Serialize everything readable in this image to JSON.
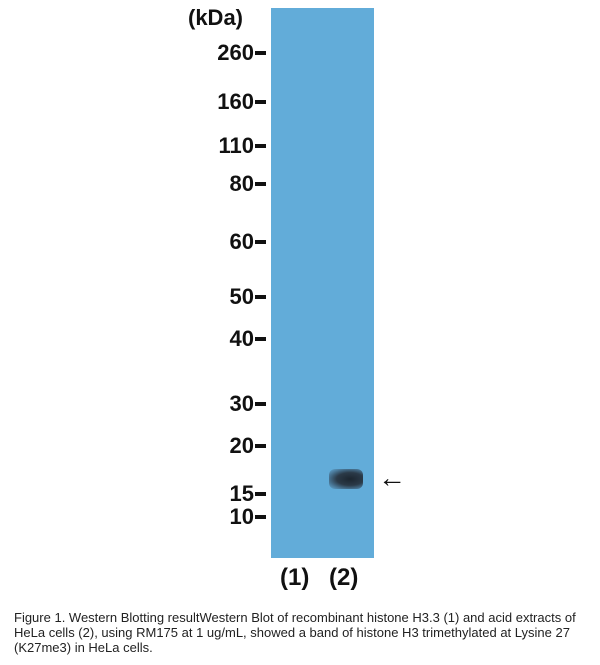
{
  "unit_label": "(kDa)",
  "markers": [
    "260",
    "160",
    "110",
    "80",
    "60",
    "50",
    "40",
    "30",
    "20",
    "15",
    "10"
  ],
  "lanes": [
    "(1)",
    "(2)"
  ],
  "arrow": "←",
  "colors": {
    "membrane": "#62acd9",
    "band": "#1c2630"
  },
  "caption": "Figure 1. Western Blotting resultWestern Blot of recombinant histone H3.3 (1) and acid extracts of HeLa cells (2), using RM175 at 1 ug/mL, showed a band of histone H3 trimethylated at Lysine 27 (K27me3) in HeLa cells."
}
